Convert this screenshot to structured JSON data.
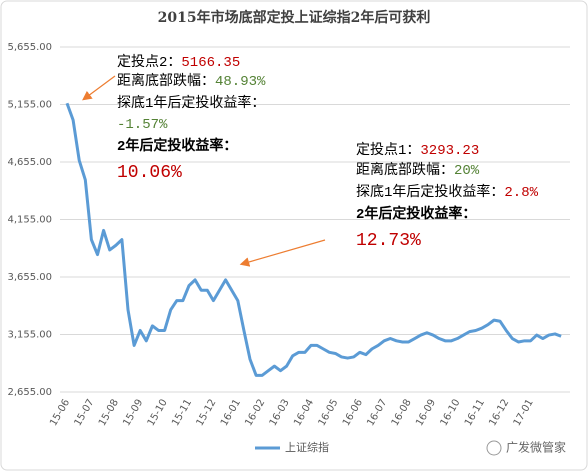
{
  "chart_data": {
    "type": "line",
    "title": "2015年市场底部定投上证综指2年后可获利",
    "categories": [
      "15-06",
      null,
      null,
      null,
      "15-07",
      null,
      null,
      null,
      "15-08",
      null,
      null,
      null,
      "15-09",
      null,
      null,
      null,
      "15-10",
      null,
      null,
      null,
      "15-11",
      null,
      null,
      null,
      "15-12",
      null,
      null,
      null,
      "16-01",
      null,
      null,
      null,
      "16-02",
      null,
      null,
      null,
      "16-03",
      null,
      null,
      null,
      "16-04",
      null,
      null,
      null,
      "16-05",
      null,
      null,
      null,
      "16-06",
      null,
      null,
      null,
      "16-07",
      null,
      null,
      null,
      "16-08",
      null,
      null,
      null,
      "16-09",
      null,
      null,
      null,
      "16-10",
      null,
      null,
      null,
      "16-11",
      null,
      null,
      null,
      "16-12",
      null,
      null,
      null,
      "17-01",
      null,
      null,
      null,
      null,
      null
    ],
    "series": [
      {
        "name": "上证综指",
        "color": "#5b9bd5",
        "values": [
          5166,
          5020,
          4670,
          4500,
          3980,
          3850,
          4060,
          3890,
          3930,
          3980,
          3370,
          3060,
          3190,
          3100,
          3230,
          3190,
          3190,
          3370,
          3450,
          3450,
          3580,
          3630,
          3540,
          3540,
          3450,
          3540,
          3630,
          3540,
          3450,
          3190,
          2940,
          2800,
          2800,
          2840,
          2880,
          2840,
          2880,
          2970,
          3000,
          3000,
          3060,
          3060,
          3030,
          3000,
          2990,
          2960,
          2950,
          2960,
          3000,
          2980,
          3030,
          3060,
          3100,
          3120,
          3100,
          3090,
          3090,
          3120,
          3150,
          3170,
          3150,
          3120,
          3100,
          3100,
          3120,
          3150,
          3180,
          3190,
          3210,
          3240,
          3280,
          3270,
          3190,
          3120,
          3090,
          3100,
          3100,
          3150,
          3120,
          3150,
          3160,
          3140
        ]
      }
    ],
    "ylim": [
      2655,
      5655
    ],
    "yticks": [
      {
        "value": 2655,
        "label": "2,655.00"
      },
      {
        "value": 3155,
        "label": "3,155.00"
      },
      {
        "value": 3655,
        "label": "3,655.00"
      },
      {
        "value": 4155,
        "label": "4,155.00"
      },
      {
        "value": 4655,
        "label": "4,655.00"
      },
      {
        "value": 5155,
        "label": "5,155.00"
      },
      {
        "value": 5655,
        "label": "5,655.00"
      }
    ],
    "grid": true,
    "legend": "bottom",
    "annotations": [
      {
        "lines": [
          [
            {
              "text": "定投点2：",
              "color": "#000000"
            },
            {
              "text": "5166.35",
              "color": "#c00000"
            }
          ],
          [
            {
              "text": "距离底部跌幅：",
              "color": "#000000"
            },
            {
              "text": "48.93%",
              "color": "#548235"
            }
          ],
          [
            {
              "text": "探底1年后定投收益率：",
              "color": "#000000"
            }
          ],
          [
            {
              "text": "-1.57%",
              "color": "#548235"
            }
          ],
          [
            {
              "text": "2年后定投收益率：",
              "color": "#000000"
            }
          ],
          [
            {
              "text": "10.06%",
              "color": "#c00000"
            }
          ]
        ]
      },
      {
        "lines": [
          [
            {
              "text": "定投点1：",
              "color": "#000000"
            },
            {
              "text": "3293.23",
              "color": "#c00000"
            }
          ],
          [
            {
              "text": "距离底部跌幅：",
              "color": "#000000"
            },
            {
              "text": "20%",
              "color": "#548235"
            }
          ],
          [
            {
              "text": "探底1年后定投收益率：",
              "color": "#000000"
            },
            {
              "text": "2.8%",
              "color": "#c00000"
            }
          ],
          [
            {
              "text": "2年后定投收益率：",
              "color": "#000000"
            }
          ],
          [
            {
              "text": "12.73%",
              "color": "#c00000"
            }
          ]
        ]
      }
    ],
    "watermark": "广发微管家"
  }
}
